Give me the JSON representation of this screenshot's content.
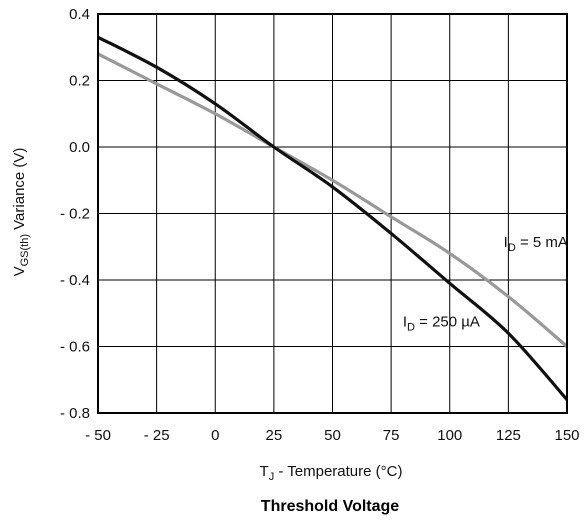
{
  "chart_data": {
    "type": "line",
    "title": "Threshold Voltage",
    "xlabel": {
      "main": "T",
      "sub": "J",
      "rest": " - Temperature (°C)"
    },
    "ylabel": {
      "main": "V",
      "sub": "GS(th)",
      "rest": " Variance (V)"
    },
    "xlim": [
      -50,
      150
    ],
    "ylim": [
      -0.8,
      0.4
    ],
    "grid": true,
    "x_ticks": [
      -50,
      -25,
      0,
      25,
      50,
      75,
      100,
      125,
      150
    ],
    "x_tick_labels": [
      "- 50",
      "- 25",
      "0",
      "25",
      "50",
      "75",
      "100",
      "125",
      "150"
    ],
    "y_ticks": [
      0.4,
      0.2,
      0.0,
      -0.2,
      -0.4,
      -0.6,
      -0.8
    ],
    "y_tick_labels": [
      "0.4",
      "0.2",
      "0.0",
      "- 0.2",
      "- 0.4",
      "- 0.6",
      "- 0.8"
    ],
    "series": [
      {
        "name": "I_D = 250 µA",
        "label": {
          "main": "I",
          "sub": "D",
          "rest": " = 250 µA",
          "at": [
            80,
            -0.54
          ]
        },
        "color": "#111111",
        "x": [
          -50,
          -25,
          0,
          25,
          50,
          75,
          100,
          125,
          150
        ],
        "y": [
          0.33,
          0.24,
          0.13,
          0.0,
          -0.12,
          -0.26,
          -0.41,
          -0.56,
          -0.76
        ]
      },
      {
        "name": "I_D = 5 mA",
        "label": {
          "main": "I",
          "sub": "D",
          "rest": " = 5 mA",
          "at": [
            123,
            -0.3
          ]
        },
        "color": "#999999",
        "x": [
          -50,
          -25,
          0,
          25,
          50,
          75,
          100,
          125,
          150
        ],
        "y": [
          0.28,
          0.19,
          0.1,
          0.0,
          -0.1,
          -0.21,
          -0.32,
          -0.45,
          -0.6
        ]
      }
    ]
  }
}
